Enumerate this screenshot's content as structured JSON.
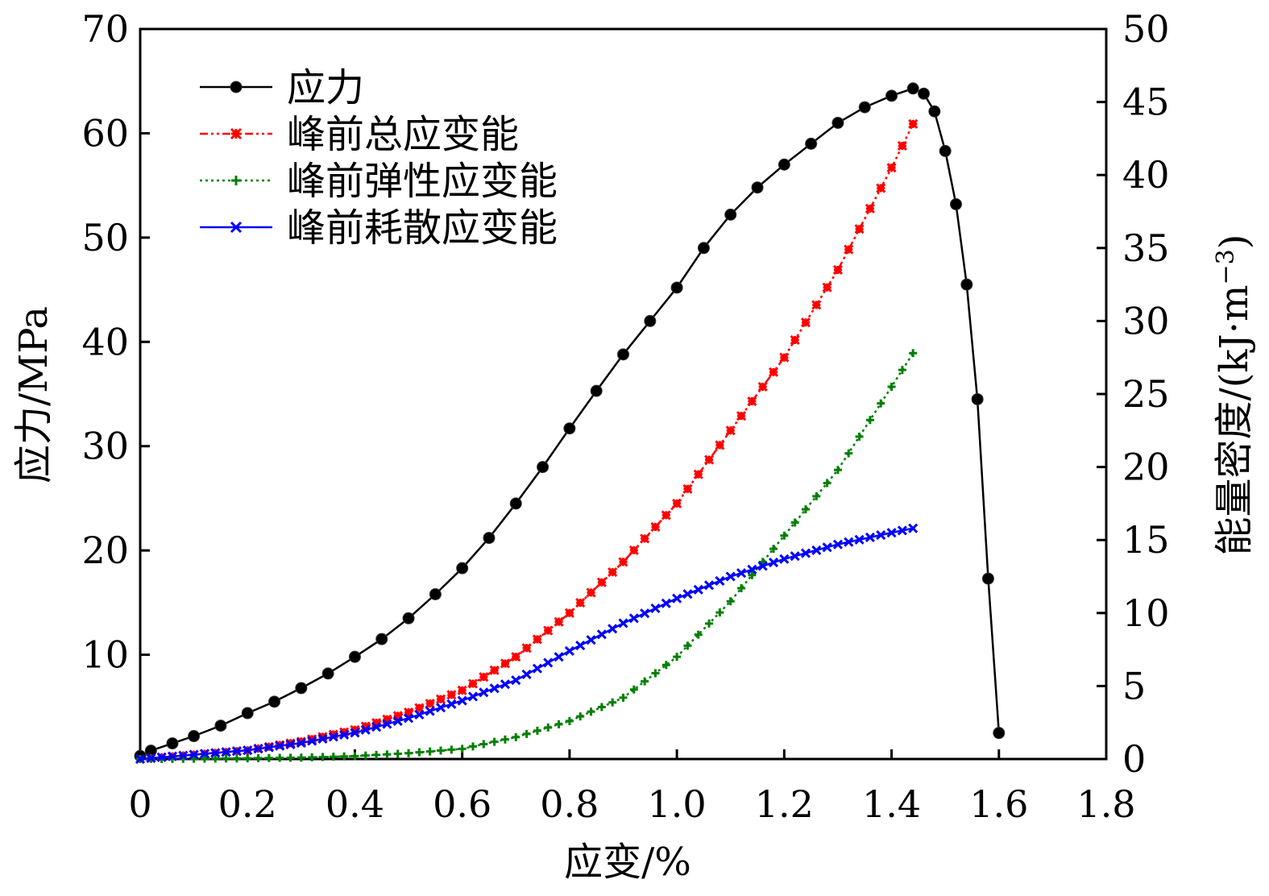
{
  "chart_data": {
    "type": "line",
    "xlabel": "应变/%",
    "ylabel": "应力/MPa",
    "y2label": "能量密度/(kJ·m",
    "y2label_sup": "−3",
    "y2label_end": ")",
    "xlim": [
      0,
      1.8
    ],
    "ylim": [
      0,
      70
    ],
    "y2lim": [
      0,
      50
    ],
    "x_ticks": [
      0,
      0.2,
      0.4,
      0.6,
      0.8,
      1.0,
      1.2,
      1.4,
      1.6,
      1.8
    ],
    "x_tick_labels": [
      "0",
      "0.2",
      "0.4",
      "0.6",
      "0.8",
      "1.0",
      "1.2",
      "1.4",
      "1.6",
      "1.8"
    ],
    "y_ticks": [
      10,
      20,
      30,
      40,
      50,
      60,
      70
    ],
    "y_tick_labels": [
      "10",
      "20",
      "30",
      "40",
      "50",
      "60",
      "70"
    ],
    "y2_ticks": [
      0,
      5,
      10,
      15,
      20,
      25,
      30,
      35,
      40,
      45,
      50
    ],
    "y2_tick_labels": [
      "0",
      "5",
      "10",
      "15",
      "20",
      "25",
      "30",
      "35",
      "40",
      "45",
      "50"
    ],
    "legend_position": "top-left",
    "grid": false,
    "series": [
      {
        "name": "应力",
        "axis": "left",
        "color": "#000000",
        "marker": "circle",
        "line": "solid",
        "x": [
          0,
          0.02,
          0.06,
          0.1,
          0.15,
          0.2,
          0.25,
          0.3,
          0.35,
          0.4,
          0.45,
          0.5,
          0.55,
          0.6,
          0.65,
          0.7,
          0.75,
          0.8,
          0.85,
          0.9,
          0.95,
          1.0,
          1.05,
          1.1,
          1.15,
          1.2,
          1.25,
          1.3,
          1.35,
          1.4,
          1.44,
          1.46,
          1.48,
          1.5,
          1.52,
          1.54,
          1.56,
          1.58,
          1.6
        ],
        "y": [
          0.3,
          0.8,
          1.5,
          2.2,
          3.2,
          4.4,
          5.5,
          6.8,
          8.2,
          9.8,
          11.5,
          13.5,
          15.8,
          18.3,
          21.2,
          24.5,
          28.0,
          31.7,
          35.3,
          38.8,
          42.0,
          45.2,
          49.0,
          52.2,
          54.8,
          57.0,
          59.0,
          61.0,
          62.5,
          63.6,
          64.3,
          63.8,
          62.1,
          58.3,
          53.2,
          45.5,
          34.5,
          17.3,
          2.5
        ]
      },
      {
        "name": "峰前总应变能",
        "axis": "right",
        "color": "#ff0000",
        "marker": "asterisk",
        "line": "dash-dot-dot",
        "x": [
          0,
          0.1,
          0.2,
          0.3,
          0.4,
          0.5,
          0.6,
          0.7,
          0.8,
          0.9,
          1.0,
          1.1,
          1.2,
          1.3,
          1.4,
          1.44
        ],
        "y": [
          0,
          0.3,
          0.6,
          1.2,
          2.0,
          3.2,
          4.7,
          7.0,
          10.0,
          13.5,
          17.5,
          22.5,
          27.5,
          33.5,
          40.5,
          43.5
        ]
      },
      {
        "name": "峰前弹性应变能",
        "axis": "right",
        "color": "#008000",
        "marker": "plus",
        "line": "dotted",
        "x": [
          0,
          0.1,
          0.2,
          0.3,
          0.4,
          0.5,
          0.6,
          0.7,
          0.8,
          0.9,
          1.0,
          1.1,
          1.2,
          1.3,
          1.4,
          1.44
        ],
        "y": [
          0,
          0.02,
          0.05,
          0.1,
          0.2,
          0.4,
          0.7,
          1.5,
          2.6,
          4.2,
          7.0,
          10.8,
          15.3,
          19.8,
          25.5,
          27.8
        ]
      },
      {
        "name": "峰前耗散应变能",
        "axis": "right",
        "color": "#0000ff",
        "marker": "x",
        "line": "solid",
        "x": [
          0,
          0.1,
          0.2,
          0.3,
          0.4,
          0.5,
          0.6,
          0.7,
          0.8,
          0.9,
          1.0,
          1.1,
          1.2,
          1.3,
          1.4,
          1.44
        ],
        "y": [
          0,
          0.3,
          0.6,
          1.1,
          1.8,
          2.8,
          4.0,
          5.4,
          7.4,
          9.3,
          11.0,
          12.5,
          13.7,
          14.7,
          15.5,
          15.8
        ]
      }
    ]
  }
}
